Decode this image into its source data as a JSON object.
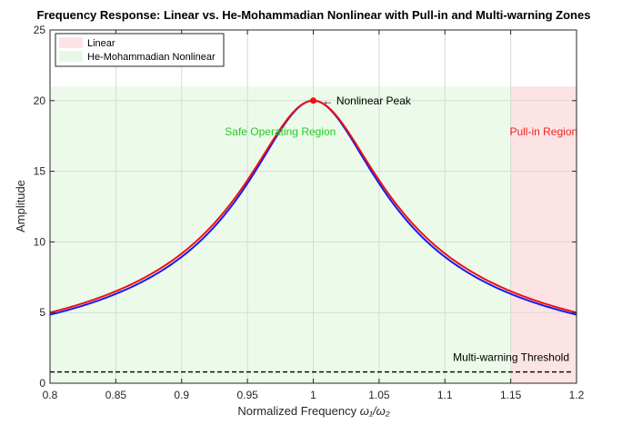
{
  "chart_data": {
    "type": "line",
    "title": "Frequency Response: Linear vs. He-Mohammadian Nonlinear with Pull-in and Multi-warning Zones",
    "xlabel_prefix": "Normalized Frequency ",
    "xlabel_math": "ω₁/ω₂",
    "ylabel": "Amplitude",
    "xlim": [
      0.8,
      1.2
    ],
    "ylim": [
      0,
      25
    ],
    "xticks": [
      0.8,
      0.85,
      0.9,
      0.95,
      1,
      1.05,
      1.1,
      1.15,
      1.2
    ],
    "xtick_labels": [
      "0.8",
      "0.85",
      "0.9",
      "0.95",
      "1",
      "1.05",
      "1.1",
      "1.15",
      "1.2"
    ],
    "yticks": [
      0,
      5,
      10,
      15,
      20,
      25
    ],
    "ytick_labels": [
      "0",
      "5",
      "10",
      "15",
      "20",
      "25"
    ],
    "grid": true,
    "legend": {
      "location": "top-left",
      "entries": [
        {
          "label": "Linear",
          "color": "#fde4e4"
        },
        {
          "label": "He-Mohammadian Nonlinear",
          "color": "#e8f8e6"
        }
      ]
    },
    "regions": [
      {
        "label": "Safe Operating Region",
        "x_range": [
          0.8,
          1.15
        ],
        "y_range": [
          0,
          21
        ],
        "fill": "#ecfaea",
        "text_color": "#22cc22",
        "label_x": 0.975,
        "label_y": 17.8
      },
      {
        "label": "Pull-in Region",
        "x_range": [
          1.15,
          1.2
        ],
        "y_range": [
          0,
          21
        ],
        "fill": "#fde4e4",
        "text_color": "#ee2222",
        "label_x": 1.175,
        "label_y": 17.8
      }
    ],
    "series": [
      {
        "id": "linear",
        "color": "#1a1aee",
        "width": 2,
        "x": [
          0.8,
          0.85,
          0.9,
          0.95,
          0.975,
          1.0,
          1.025,
          1.05,
          1.1,
          1.15,
          1.2
        ],
        "y": [
          4.85,
          6.3,
          8.85,
          14.1,
          17.85,
          20.0,
          17.85,
          14.1,
          8.85,
          6.3,
          4.85
        ]
      },
      {
        "id": "nonlinear",
        "color": "#ee1111",
        "width": 2,
        "x": [
          0.8,
          0.85,
          0.9,
          0.95,
          0.975,
          1.0,
          1.025,
          1.05,
          1.1,
          1.15,
          1.2
        ],
        "y": [
          5.0,
          6.5,
          9.1,
          14.4,
          18.1,
          20.0,
          18.1,
          14.4,
          9.1,
          6.5,
          5.0
        ]
      }
    ],
    "threshold": {
      "label": "Multi-warning Threshold",
      "y": 0.8,
      "color": "#000000",
      "style": "dashed"
    },
    "peak": {
      "label": "Nonlinear Peak",
      "x": 1.0,
      "y": 20.0,
      "color": "#ee1111",
      "arrow": "←"
    }
  }
}
